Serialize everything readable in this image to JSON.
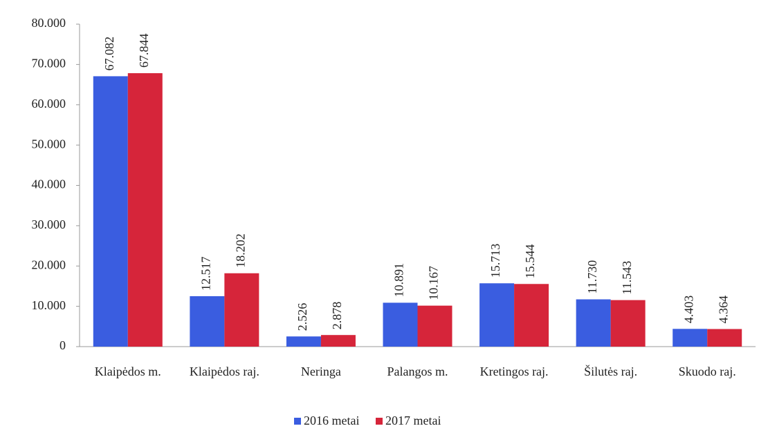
{
  "chart_data": {
    "type": "bar",
    "categories": [
      "Klaipėdos m.",
      "Klaipėdos raj.",
      "Neringa",
      "Palangos m.",
      "Kretingos raj.",
      "Šilutės raj.",
      "Skuodo raj."
    ],
    "series": [
      {
        "name": "2016 metai",
        "color": "#3a5de0",
        "values": [
          67082,
          12517,
          2526,
          10891,
          15713,
          11730,
          4403
        ],
        "value_labels": [
          "67.082",
          "12.517",
          "2.526",
          "10.891",
          "15.713",
          "11.730",
          "4.403"
        ]
      },
      {
        "name": "2017 metai",
        "color": "#d6253a",
        "values": [
          67844,
          18202,
          2878,
          10167,
          15544,
          11543,
          4364
        ],
        "value_labels": [
          "67.844",
          "18.202",
          "2.878",
          "10.167",
          "15.544",
          "11.543",
          "4.364"
        ]
      }
    ],
    "ylim": [
      0,
      80000
    ],
    "yticks": [
      0,
      {
        "value": 10000,
        "label": "10.000"
      },
      {
        "value": 20000,
        "label": "20.000"
      },
      {
        "value": 30000,
        "label": "30.000"
      },
      {
        "value": 40000,
        "label": "40.000"
      },
      {
        "value": 50000,
        "label": "50.000"
      },
      {
        "value": 60000,
        "label": "60.000"
      },
      {
        "value": 70000,
        "label": "70.000"
      },
      {
        "value": 80000,
        "label": "80.000"
      }
    ],
    "grid": false,
    "legend": "bottom"
  }
}
